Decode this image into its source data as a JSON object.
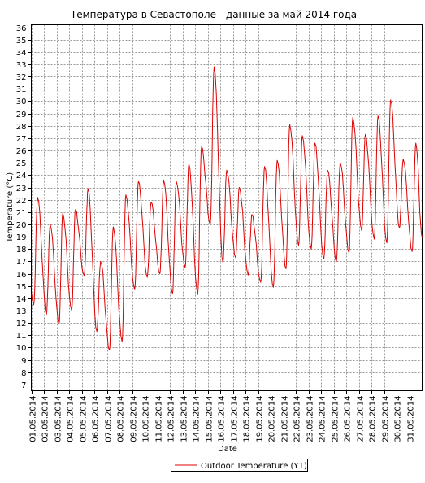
{
  "chart_data": {
    "type": "line",
    "title": "Температура в Севастополе - данные за май 2014 года",
    "xlabel": "Date",
    "ylabel": "Temperature (°C)",
    "ylim": [
      6.5,
      36.2
    ],
    "yticks": [
      7,
      8,
      9,
      10,
      11,
      12,
      13,
      14,
      15,
      16,
      17,
      18,
      19,
      20,
      21,
      22,
      23,
      24,
      25,
      26,
      27,
      28,
      29,
      30,
      31,
      32,
      33,
      34,
      35,
      36
    ],
    "xlim": [
      "2014-05-01 00:00",
      "2014-06-01 00:00"
    ],
    "grid": true,
    "legend_position": "bottom",
    "x_tick_labels": [
      "01.05.2014",
      "02.05.2014",
      "03.05.2014",
      "04.05.2014",
      "05.05.2014",
      "06.05.2014",
      "07.05.2014",
      "08.05.2014",
      "09.05.2014",
      "10.05.2014",
      "11.05.2014",
      "12.05.2014",
      "13.05.2014",
      "14.05.2014",
      "15.05.2014",
      "16.05.2014",
      "17.05.2014",
      "18.05.2014",
      "19.05.2014",
      "20.05.2014",
      "21.05.2014",
      "22.05.2014",
      "23.05.2014",
      "24.05.2014",
      "25.05.2014",
      "26.05.2014",
      "27.05.2014",
      "28.05.2014",
      "29.05.2014",
      "30.05.2014",
      "31.05.2014"
    ],
    "series": [
      {
        "name": "Outdoor Temperature (Y1)",
        "color": "#dd0000",
        "daily_min": [
          13.5,
          12.7,
          11.9,
          13.0,
          15.8,
          11.3,
          9.8,
          10.5,
          14.7,
          15.7,
          16.0,
          14.4,
          16.5,
          14.3,
          20.0,
          16.9,
          17.3,
          15.9,
          15.3,
          14.9,
          16.4,
          18.3,
          18.0,
          17.2,
          17.0,
          17.7,
          19.5,
          18.8,
          18.5,
          19.7,
          17.8
        ],
        "daily_max": [
          22.2,
          20.0,
          20.9,
          21.2,
          22.9,
          17.0,
          19.8,
          22.4,
          23.5,
          21.8,
          23.6,
          23.5,
          24.9,
          26.3,
          32.8,
          24.4,
          23.0,
          20.8,
          24.7,
          25.2,
          28.1,
          27.2,
          26.6,
          24.4,
          25.0,
          28.7,
          27.3,
          28.8,
          30.1,
          25.3,
          26.6
        ],
        "end_value": 18.9
      }
    ]
  }
}
